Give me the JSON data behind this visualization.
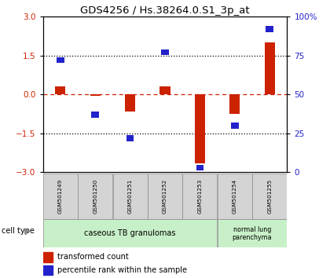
{
  "title": "GDS4256 / Hs.38264.0.S1_3p_at",
  "samples": [
    "GSM501249",
    "GSM501250",
    "GSM501251",
    "GSM501252",
    "GSM501253",
    "GSM501254",
    "GSM501255"
  ],
  "transformed_count": [
    0.3,
    -0.05,
    -0.65,
    0.3,
    -2.65,
    -0.75,
    2.0
  ],
  "percentile_rank": [
    72,
    37,
    22,
    77,
    3,
    30,
    92
  ],
  "ylim_left": [
    -3,
    3
  ],
  "yticks_left": [
    -3,
    -1.5,
    0,
    1.5,
    3
  ],
  "yticks_right": [
    0,
    25,
    50,
    75,
    100
  ],
  "red_color": "#cc2200",
  "blue_color": "#2222cc",
  "group1_indices": [
    0,
    1,
    2,
    3,
    4
  ],
  "group2_indices": [
    5,
    6
  ],
  "group1_label": "caseous TB granulomas",
  "group2_label": "normal lung\nparenchyma",
  "cell_type_label": "cell type",
  "legend1": "transformed count",
  "legend2": "percentile rank within the sample",
  "bar_width": 0.3,
  "sq_size": 0.22,
  "gray_box": "#d4d4d4",
  "green_box": "#c8f0c8"
}
